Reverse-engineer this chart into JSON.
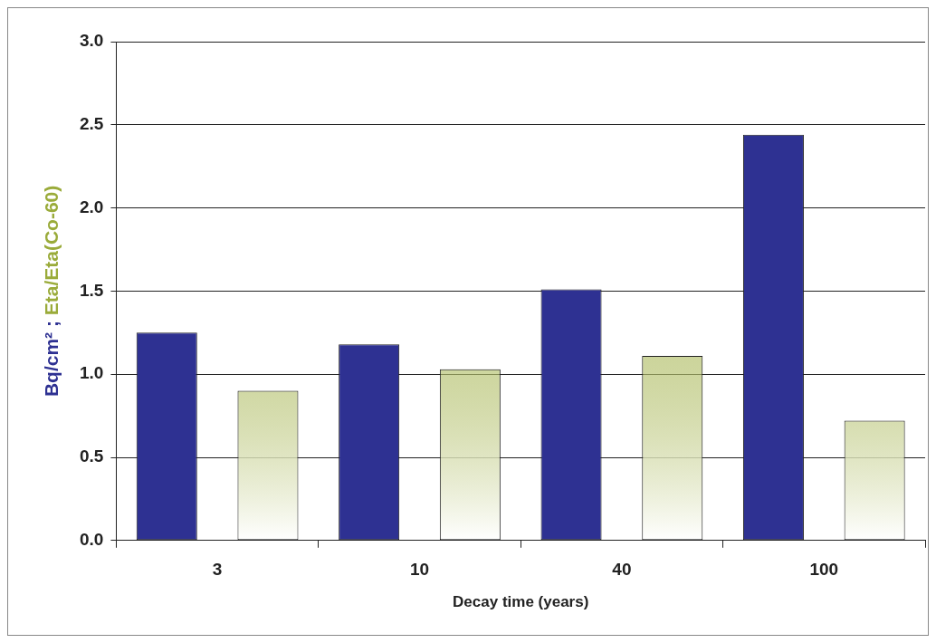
{
  "chart_data": {
    "type": "bar",
    "xlabel": "Decay time (years)",
    "ylabel": "Bq/cm² ; Eta/Eta(Co-60)",
    "categories": [
      "3",
      "10",
      "40",
      "100"
    ],
    "series": [
      {
        "color": "#2e3192",
        "values": [
          1.25,
          1.18,
          1.51,
          2.44
        ]
      },
      {
        "color": "#9aab3a",
        "values": [
          0.9,
          1.03,
          1.11,
          0.72
        ]
      }
    ],
    "ylim": [
      0,
      3
    ],
    "yticks": [
      {
        "value": 0,
        "label": "0.0"
      },
      {
        "value": 0.5,
        "label": "0.5"
      },
      {
        "value": 1,
        "label": "1.0"
      },
      {
        "value": 1.5,
        "label": "1.5"
      },
      {
        "value": 2,
        "label": "2.0"
      },
      {
        "value": 2.5,
        "label": "2.5"
      },
      {
        "value": 3,
        "label": "3.0"
      }
    ],
    "grid": "y",
    "legend": false
  }
}
